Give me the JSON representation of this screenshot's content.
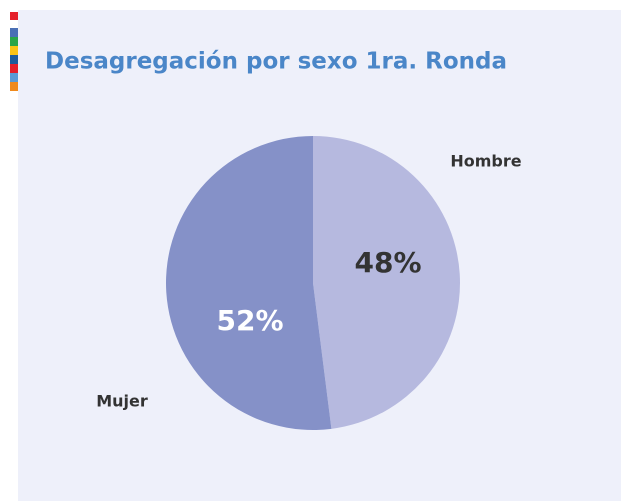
{
  "chart_data": {
    "type": "pie",
    "title": "Desagregación por sexo 1ra. Ronda",
    "categories": [
      "Hombre",
      "Mujer"
    ],
    "values": [
      48,
      52
    ],
    "value_labels": [
      "48%",
      "52%"
    ],
    "colors": [
      "#b6b9df",
      "#8591c8"
    ]
  }
}
